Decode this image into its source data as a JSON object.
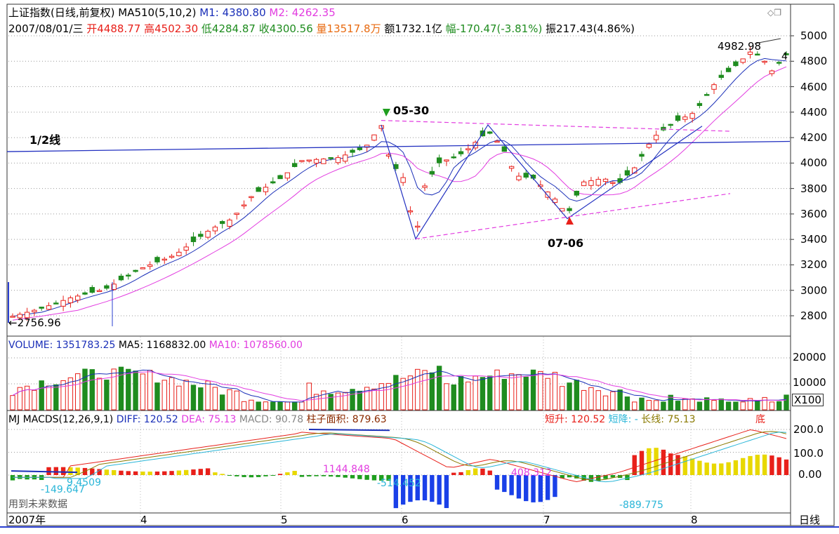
{
  "header": {
    "title": "上证指数(日线,前复权)",
    "ma_label": "MA510(5,10,2)",
    "m1_label": "M1: 4380.80",
    "m2_label": "M2: 4262.35",
    "date": "2007/08/01/三",
    "open": "开4488.77",
    "high": "高4502.30",
    "low": "低4284.87",
    "close": "收4300.56",
    "volume": "量13517.8万",
    "amount": "额1732.1亿",
    "range": "幅-170.47(-3.81%)",
    "amplitude": "振217.43(4.86%)"
  },
  "price_panel": {
    "ylabels": [
      "5000",
      "4800",
      "4600",
      "4400",
      "4200",
      "4000",
      "3800",
      "3600",
      "3400",
      "3200",
      "3000",
      "2800"
    ],
    "annotations": {
      "high_label": "4982.98",
      "low_label": "2756.96",
      "top_label": "05-30",
      "bottom_label": "07-06",
      "half_line": "1/2线",
      "right_marker": "4"
    },
    "colors": {
      "up": "#e8201a",
      "down": "#1f8c1f",
      "ma1": "#1a2fb8",
      "ma2": "#e23ce0",
      "trend": "#2230c0",
      "dash": "#e23ce0"
    }
  },
  "volume_panel": {
    "label": "VOLUME: 1351783.25",
    "ma5_label": "MA5: 1168832.00",
    "ma10_label": "MA10: 1078560.00",
    "ylabels": [
      "20000",
      "10000"
    ],
    "unit": "X100"
  },
  "macd_panel": {
    "label": "MJ MACDS(12,26,9,1)",
    "diff_label": "DIFF: 120.52",
    "dea_label": "DEA: 75.13",
    "macd_label": "MACD: 90.78",
    "area_label": "柱子面积: 879.63",
    "short_up": "短升: 120.52",
    "short_down": "短降: -",
    "long_line": "长线: 75.13",
    "bottom_mark": "底",
    "ylabels": [
      "200.0",
      "100.0",
      "0.00"
    ],
    "annotations": [
      "9.4509",
      "-149.647",
      "1144.848",
      "-514.452",
      "408.312",
      "-889.775"
    ],
    "future_note": "用到未来数据"
  },
  "x_axis": {
    "labels": [
      "2007年",
      "4",
      "5",
      "6",
      "7",
      "8"
    ],
    "period": "日线"
  },
  "window_icons": [
    "diamond-icon",
    "restore-icon"
  ],
  "chart_data": {
    "type": "candlestick",
    "title": "上证指数(日线,前复权)",
    "ylim": [
      2700,
      5050
    ],
    "x_range": [
      "2007-03",
      "2007-08-01"
    ],
    "swing_points": [
      {
        "label": "2756.96",
        "value": 2756.96,
        "note": "period low"
      },
      {
        "label": "05-30",
        "date": "2007-05-30",
        "value": 4335
      },
      {
        "date": "2007-06-05",
        "value": 3404
      },
      {
        "label": "07-06",
        "date": "2007-07-06",
        "value": 3563
      },
      {
        "label": "4982.98",
        "value": 4982.98,
        "note": "period high"
      }
    ],
    "last_bar": {
      "date": "2007-08-01",
      "open": 4488.77,
      "high": 4502.3,
      "low": 4284.87,
      "close": 4300.56
    },
    "volume_ylim": [
      0,
      22000
    ],
    "macd_ylim": [
      -260,
      240
    ],
    "macd_lines": {
      "DIFF": 120.52,
      "DEA": 75.13,
      "MACD": 90.78
    }
  }
}
